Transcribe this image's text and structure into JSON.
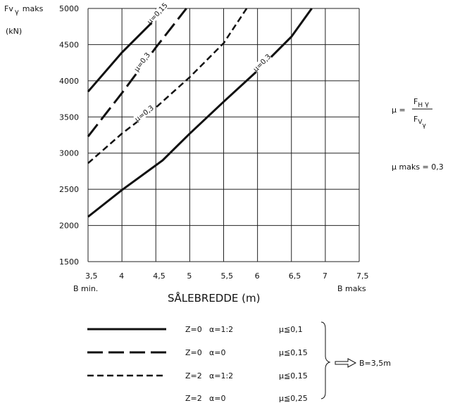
{
  "chart_data": {
    "type": "line",
    "ylabel_line1": "Fv",
    "ylabel_sub": "γ",
    "ylabel_suffix": "maks",
    "yunit": "(kN)",
    "xlabel": "SÅLEBREDDE  (m)",
    "xmin_label": "B  min.",
    "xmax_label": "B  maks",
    "xlim": [
      3.5,
      7.5
    ],
    "ylim": [
      1500,
      5000
    ],
    "x_ticks": [
      {
        "value": 3.5,
        "label": "3,5"
      },
      {
        "value": 4,
        "label": "4"
      },
      {
        "value": 4.5,
        "label": "4,5"
      },
      {
        "value": 5,
        "label": "5"
      },
      {
        "value": 5.5,
        "label": "5,5"
      },
      {
        "value": 6,
        "label": "6"
      },
      {
        "value": 6.5,
        "label": "6,5"
      },
      {
        "value": 7,
        "label": "7"
      },
      {
        "value": 7.5,
        "label": "7,5"
      }
    ],
    "y_ticks": [
      {
        "value": 1500,
        "label": "1500"
      },
      {
        "value": 2000,
        "label": "2000"
      },
      {
        "value": 2500,
        "label": "2500"
      },
      {
        "value": 3000,
        "label": "3000"
      },
      {
        "value": 3500,
        "label": "3500"
      },
      {
        "value": 4000,
        "label": "4000"
      },
      {
        "value": 4500,
        "label": "4500"
      },
      {
        "value": 5000,
        "label": "5000"
      }
    ],
    "grid": true,
    "series": [
      {
        "key": "s1",
        "style": "solid",
        "label": "μ=0,15",
        "points": [
          [
            3.5,
            3850
          ],
          [
            4.0,
            4390
          ],
          [
            4.5,
            4860
          ],
          [
            4.64,
            5000
          ]
        ]
      },
      {
        "key": "s2",
        "style": "longdash",
        "label": "μ=0,3",
        "points": [
          [
            3.5,
            3230
          ],
          [
            4.0,
            3830
          ],
          [
            4.5,
            4460
          ],
          [
            4.95,
            5000
          ]
        ]
      },
      {
        "key": "s3",
        "style": "shortdash",
        "label": "μ=0,3",
        "points": [
          [
            3.5,
            2860
          ],
          [
            4.0,
            3270
          ],
          [
            4.5,
            3630
          ],
          [
            5.0,
            4050
          ],
          [
            5.5,
            4520
          ],
          [
            5.84,
            5000
          ]
        ]
      },
      {
        "key": "s4",
        "style": "solid",
        "label": "μ=0,3",
        "points": [
          [
            3.5,
            2120
          ],
          [
            4.0,
            2490
          ],
          [
            4.6,
            2900
          ],
          [
            5.0,
            3270
          ],
          [
            5.5,
            3710
          ],
          [
            6.0,
            4140
          ],
          [
            6.5,
            4610
          ],
          [
            6.8,
            5000
          ]
        ]
      }
    ],
    "annotation_formula": {
      "lhs": "μ =",
      "num": "F",
      "num_sub": "H",
      "num_sub2": "γ",
      "den": "F",
      "den_sub": "V",
      "den_sub2": "γ"
    },
    "annotation_max": "μ  maks = 0,3",
    "legend": [
      {
        "style": "solid",
        "z": "Z=0",
        "alpha": "α=1:2",
        "mu": "μ≦0,1"
      },
      {
        "style": "longdash",
        "z": "Z=0",
        "alpha": "α=0",
        "mu": "μ≦0,15"
      },
      {
        "style": "shortdash",
        "z": "Z=2",
        "alpha": "α=1:2",
        "mu": "μ≦0,15"
      },
      {
        "style": "none",
        "z": "Z=2",
        "alpha": "α=0",
        "mu": "μ≦0,25"
      }
    ],
    "legend_result": "B=3,5m"
  }
}
